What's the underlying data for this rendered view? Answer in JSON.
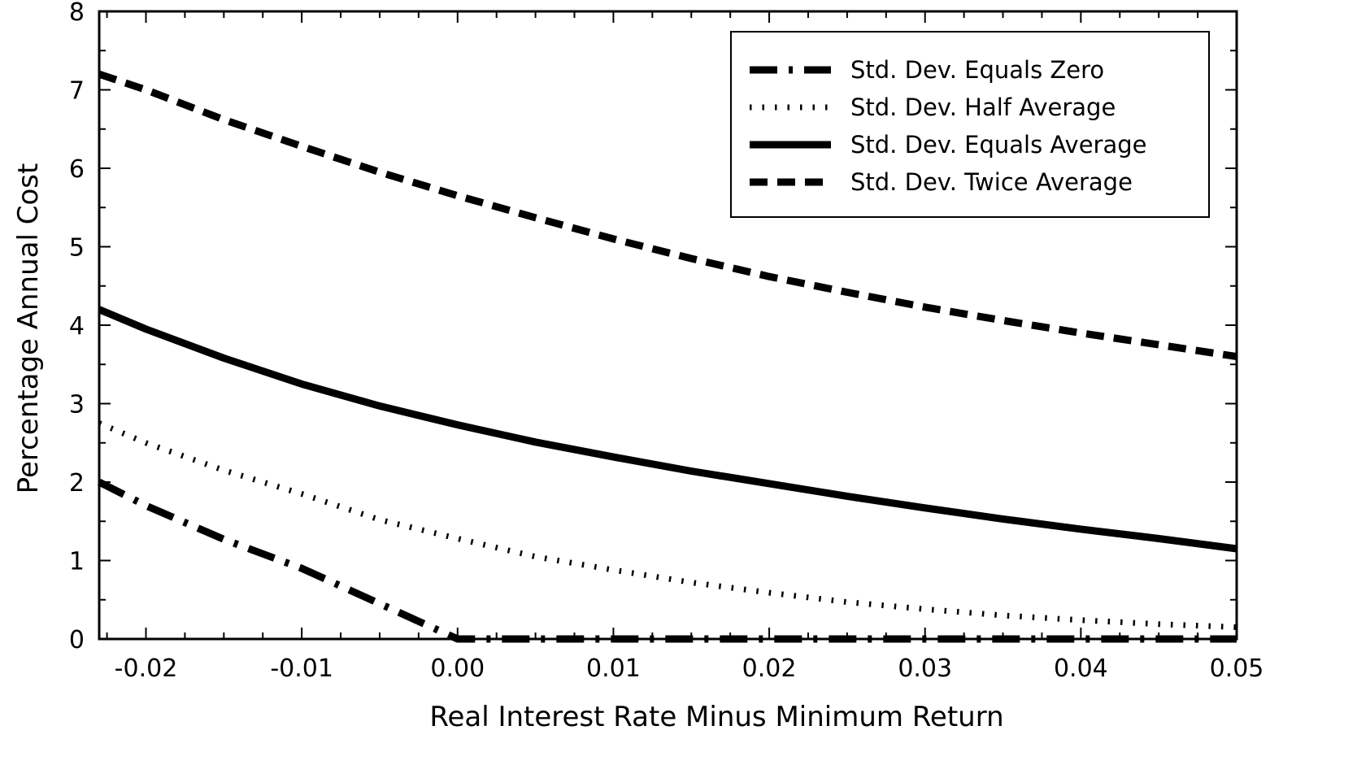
{
  "chart_data": {
    "type": "line",
    "title": "",
    "xlabel": "Real Interest Rate Minus Minimum Return",
    "ylabel": "Percentage Annual Cost",
    "xlim": [
      -0.023,
      0.05
    ],
    "ylim": [
      0,
      8
    ],
    "x_ticks": [
      -0.02,
      -0.01,
      0.0,
      0.01,
      0.02,
      0.03,
      0.04,
      0.05
    ],
    "x_tick_labels": [
      "-0.02",
      "-0.01",
      "0.00",
      "0.01",
      "0.02",
      "0.03",
      "0.04",
      "0.05"
    ],
    "y_ticks": [
      0,
      1,
      2,
      3,
      4,
      5,
      6,
      7,
      8
    ],
    "y_tick_labels": [
      "0",
      "1",
      "2",
      "3",
      "4",
      "5",
      "6",
      "7",
      "8"
    ],
    "grid": false,
    "legend_position": "top-right",
    "x": [
      -0.023,
      -0.02,
      -0.015,
      -0.01,
      -0.005,
      0.0,
      0.005,
      0.01,
      0.015,
      0.02,
      0.025,
      0.03,
      0.035,
      0.04,
      0.045,
      0.05
    ],
    "series": [
      {
        "name": "Std. Dev. Equals Zero",
        "style": "dashdot",
        "color": "#000000",
        "values": [
          2.0,
          1.7,
          1.27,
          0.9,
          0.45,
          0.0,
          0.0,
          0.0,
          0.0,
          0.0,
          0.0,
          0.0,
          0.0,
          0.0,
          0.0,
          0.0
        ]
      },
      {
        "name": "Std. Dev. Half Average",
        "style": "dotted",
        "color": "#000000",
        "values": [
          2.75,
          2.5,
          2.15,
          1.85,
          1.52,
          1.28,
          1.05,
          0.88,
          0.72,
          0.59,
          0.47,
          0.38,
          0.3,
          0.24,
          0.19,
          0.15
        ]
      },
      {
        "name": "Std. Dev. Equals Average",
        "style": "solid",
        "color": "#000000",
        "values": [
          4.2,
          3.95,
          3.58,
          3.25,
          2.97,
          2.73,
          2.51,
          2.32,
          2.14,
          1.98,
          1.82,
          1.67,
          1.53,
          1.4,
          1.28,
          1.15
        ]
      },
      {
        "name": "Std. Dev. Twice Average",
        "style": "dashed",
        "color": "#000000",
        "values": [
          7.2,
          7.0,
          6.62,
          6.28,
          5.95,
          5.65,
          5.37,
          5.1,
          4.85,
          4.62,
          4.42,
          4.23,
          4.06,
          3.9,
          3.75,
          3.6
        ]
      }
    ]
  }
}
